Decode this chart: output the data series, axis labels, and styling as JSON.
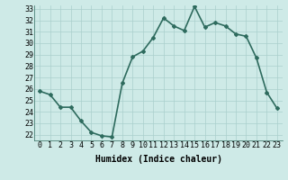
{
  "x": [
    0,
    1,
    2,
    3,
    4,
    5,
    6,
    7,
    8,
    9,
    10,
    11,
    12,
    13,
    14,
    15,
    16,
    17,
    18,
    19,
    20,
    21,
    22,
    23
  ],
  "y": [
    25.8,
    25.5,
    24.4,
    24.4,
    23.2,
    22.2,
    21.9,
    21.8,
    26.5,
    28.8,
    29.3,
    30.5,
    32.2,
    31.5,
    31.1,
    33.2,
    31.4,
    31.8,
    31.5,
    30.8,
    30.6,
    28.7,
    25.7,
    24.3
  ],
  "line_color": "#2e6b5e",
  "marker": "D",
  "marker_size": 2,
  "bg_color": "#ceeae7",
  "grid_color": "#aacfcc",
  "xlabel": "Humidex (Indice chaleur)",
  "ylim": [
    22,
    33
  ],
  "xlim": [
    -0.5,
    23.5
  ],
  "yticks": [
    22,
    23,
    24,
    25,
    26,
    27,
    28,
    29,
    30,
    31,
    32,
    33
  ],
  "xticks": [
    0,
    1,
    2,
    3,
    4,
    5,
    6,
    7,
    8,
    9,
    10,
    11,
    12,
    13,
    14,
    15,
    16,
    17,
    18,
    19,
    20,
    21,
    22,
    23
  ],
  "xlabel_fontsize": 7,
  "tick_fontsize": 6,
  "linewidth": 1.2
}
